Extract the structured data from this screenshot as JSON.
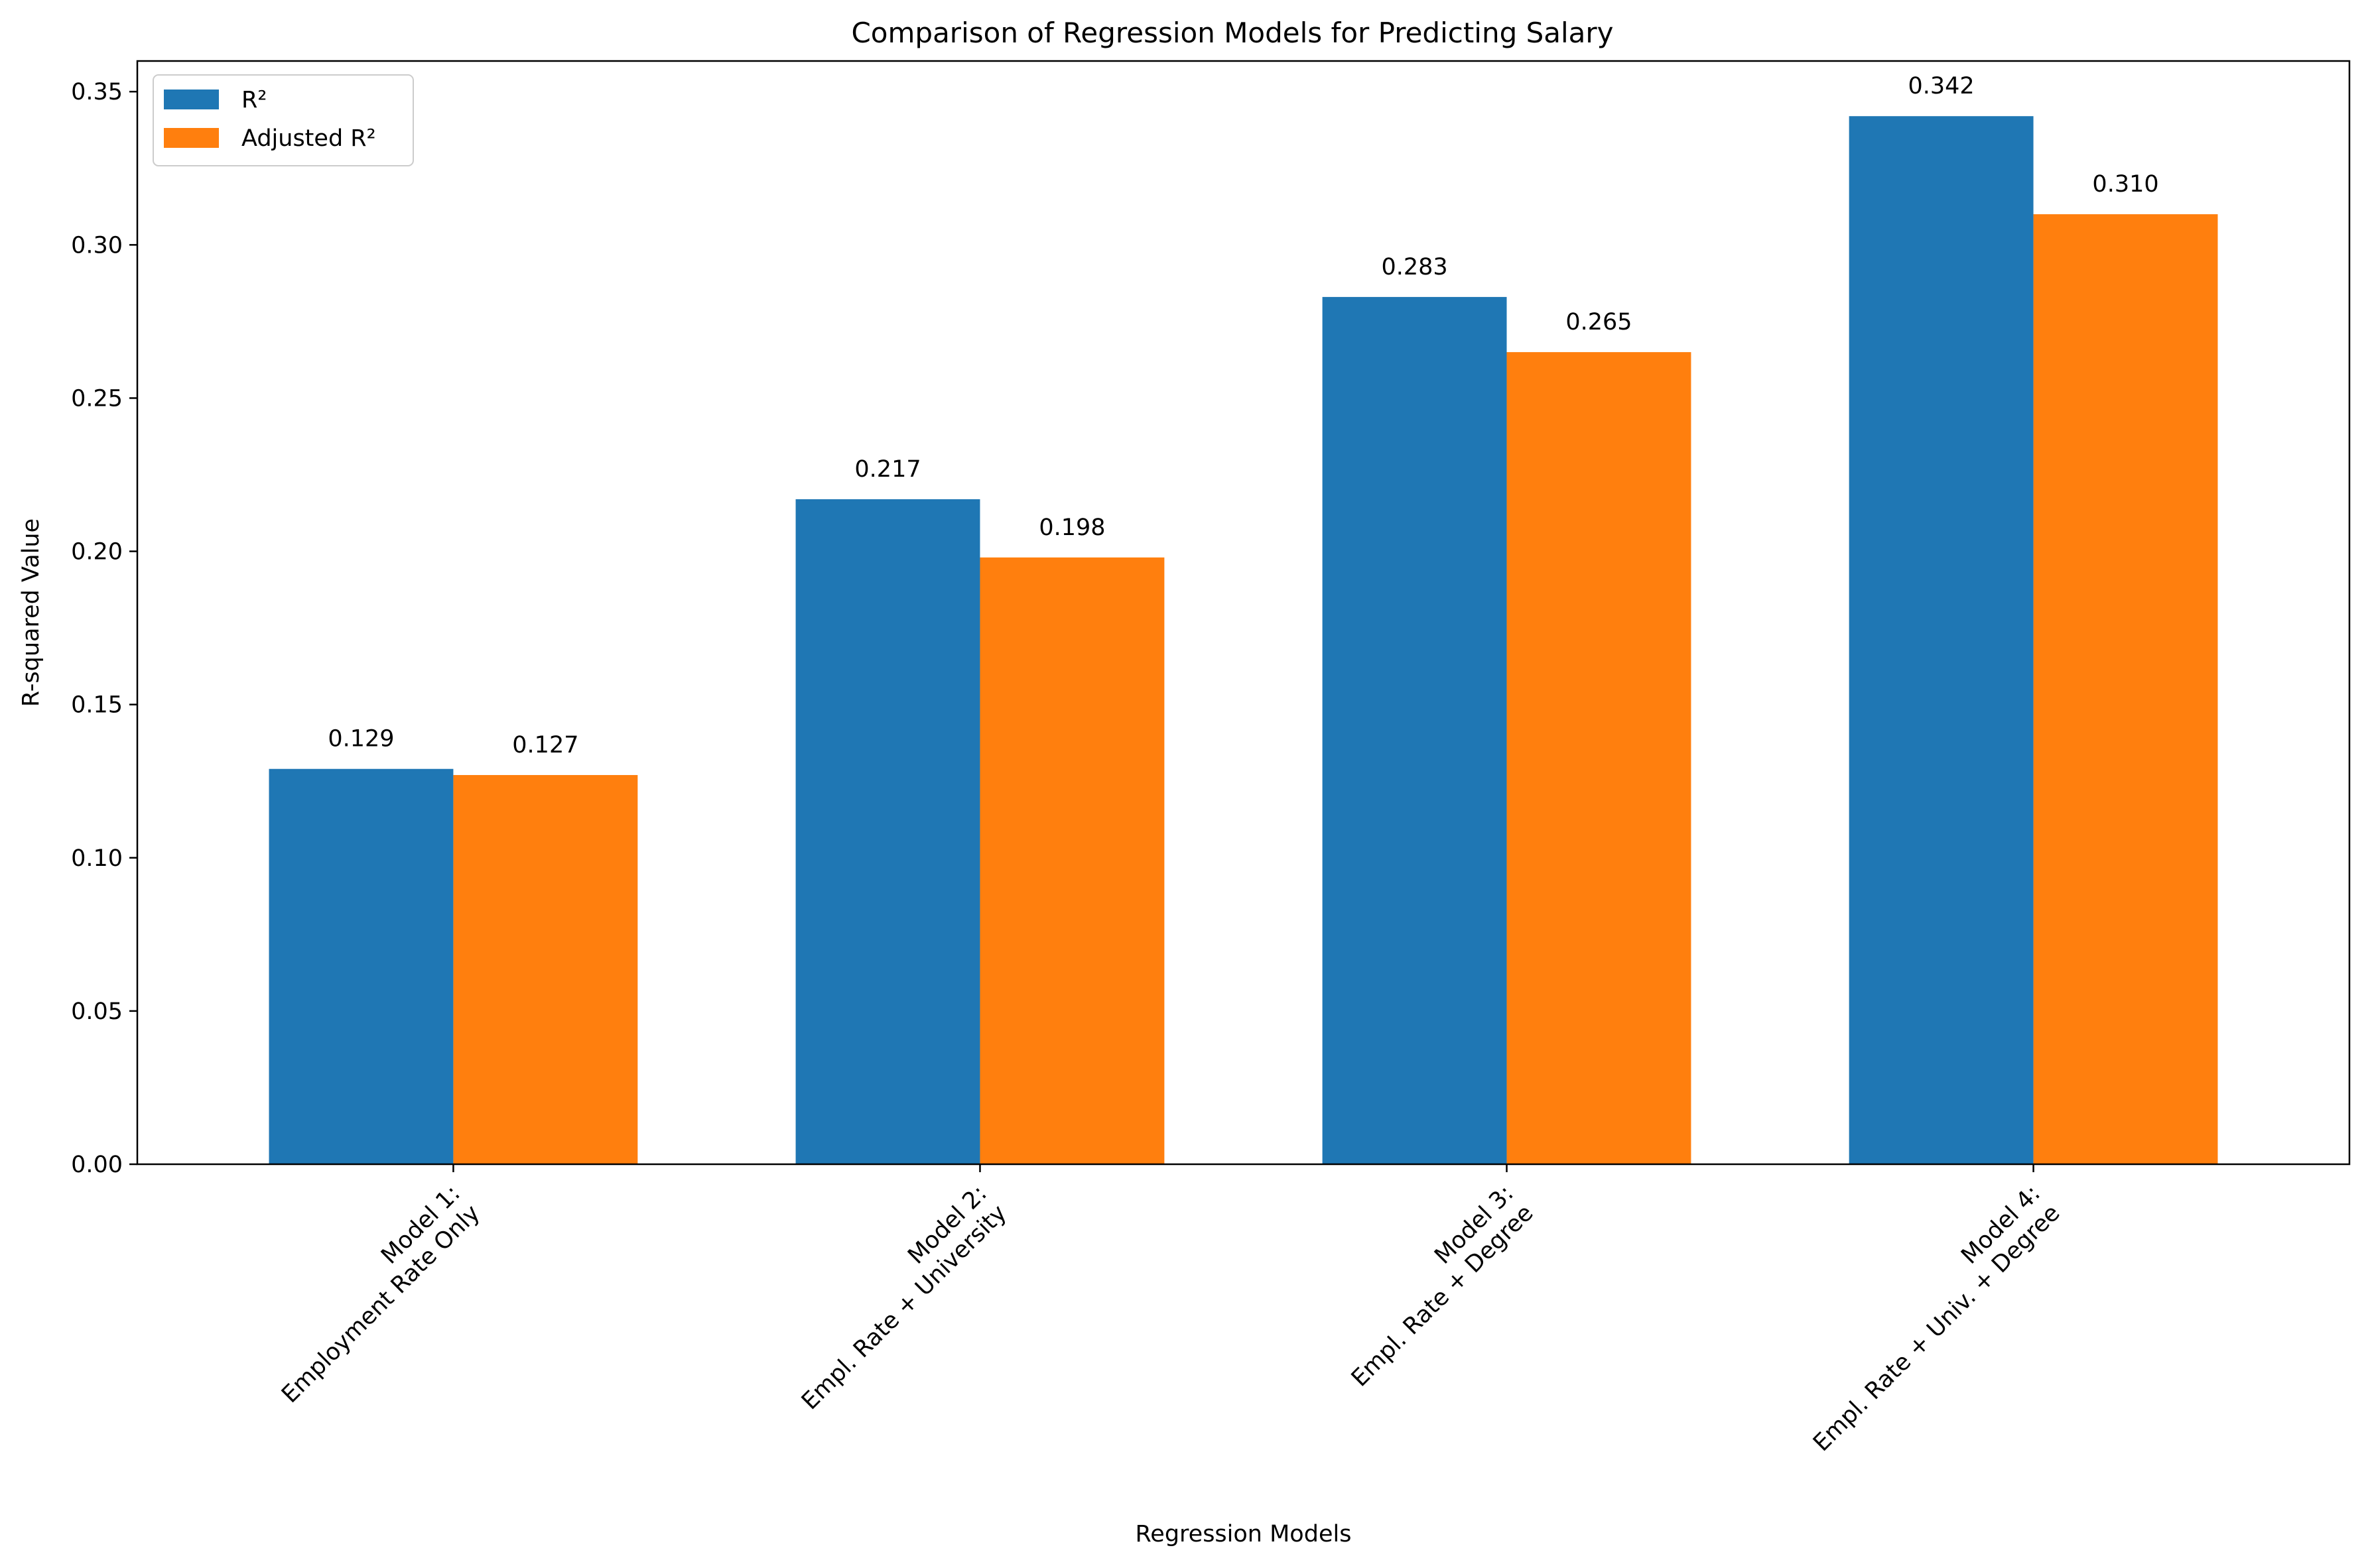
{
  "chart_data": {
    "type": "bar",
    "title": "Comparison of Regression Models for Predicting Salary",
    "xlabel": "Regression Models",
    "ylabel": "R-squared Value",
    "ylim": [
      0,
      0.36
    ],
    "yticks": [
      "0.00",
      "0.05",
      "0.10",
      "0.15",
      "0.20",
      "0.25",
      "0.30",
      "0.35"
    ],
    "categories": [
      [
        "Model 1:",
        "Employment Rate Only"
      ],
      [
        "Model 2:",
        "Empl. Rate + University"
      ],
      [
        "Model 3:",
        "Empl. Rate + Degree"
      ],
      [
        "Model 4:",
        "Empl. Rate + Univ. + Degree"
      ]
    ],
    "series": [
      {
        "name": "R²",
        "color": "#1f77b4",
        "values": [
          0.129,
          0.217,
          0.283,
          0.342
        ],
        "labels": [
          "0.129",
          "0.217",
          "0.283",
          "0.342"
        ]
      },
      {
        "name": "Adjusted R²",
        "color": "#ff7f0e",
        "values": [
          0.127,
          0.198,
          0.265,
          0.31
        ],
        "labels": [
          "0.127",
          "0.198",
          "0.265",
          "0.310"
        ]
      }
    ],
    "legend_position": "upper left",
    "grid": false
  }
}
